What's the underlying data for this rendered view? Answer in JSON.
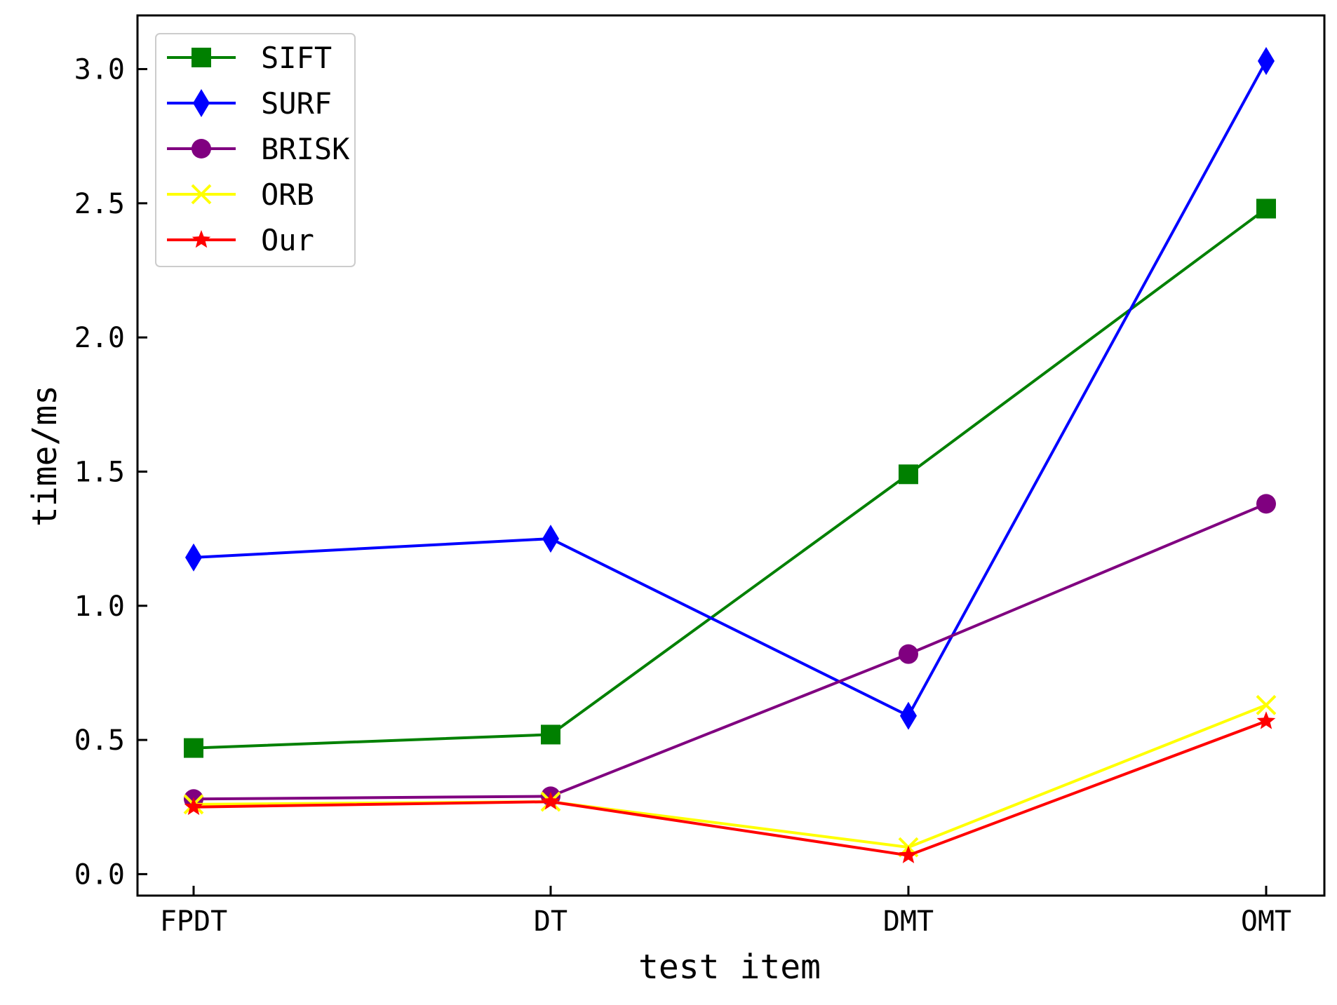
{
  "chart_data": {
    "type": "line",
    "title": "",
    "xlabel": "test item",
    "ylabel": "time/ms",
    "categories": [
      "FPDT",
      "DT",
      "DMT",
      "OMT"
    ],
    "ylim": [
      -0.08,
      3.2
    ],
    "yticks": [
      0.0,
      0.5,
      1.0,
      1.5,
      2.0,
      2.5,
      3.0
    ],
    "ytick_labels": [
      "0.0",
      "0.5",
      "1.0",
      "1.5",
      "2.0",
      "2.5",
      "3.0"
    ],
    "grid": false,
    "legend_position": "top-left",
    "series": [
      {
        "name": "SIFT",
        "color": "#008000",
        "marker": "square",
        "values": [
          0.47,
          0.52,
          1.49,
          2.48
        ]
      },
      {
        "name": "SURF",
        "color": "#0000ff",
        "marker": "diamond",
        "values": [
          1.18,
          1.25,
          0.59,
          3.03
        ]
      },
      {
        "name": "BRISK",
        "color": "#800080",
        "marker": "circle",
        "values": [
          0.28,
          0.29,
          0.82,
          1.38
        ]
      },
      {
        "name": "ORB",
        "color": "#ffff00",
        "marker": "x",
        "values": [
          0.26,
          0.27,
          0.1,
          0.63
        ]
      },
      {
        "name": "Our",
        "color": "#ff0000",
        "marker": "star",
        "values": [
          0.25,
          0.27,
          0.07,
          0.57
        ]
      }
    ]
  }
}
